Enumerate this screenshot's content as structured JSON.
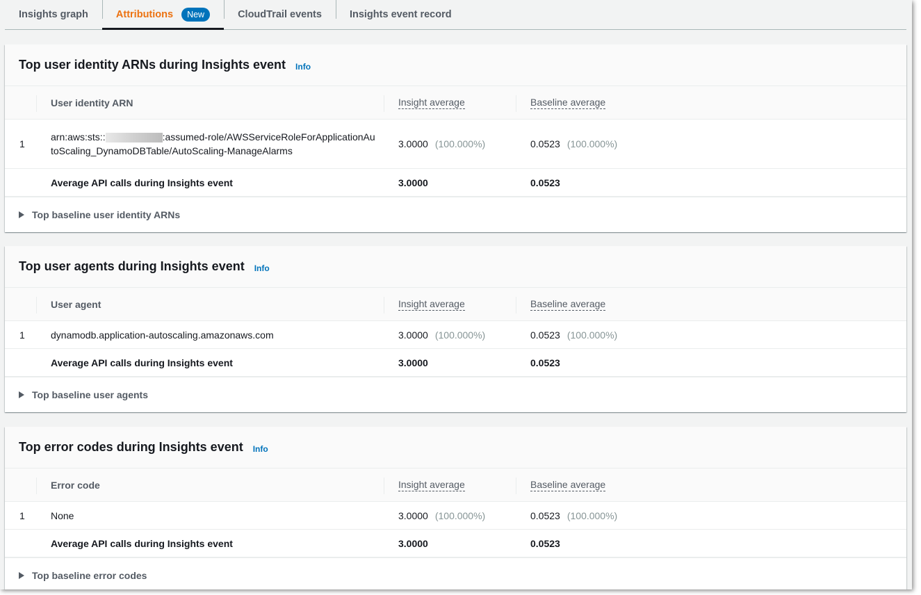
{
  "tabs": [
    {
      "label": "Insights graph",
      "active": false
    },
    {
      "label": "Attributions",
      "active": true,
      "badge": "New"
    },
    {
      "label": "CloudTrail events",
      "active": false
    },
    {
      "label": "Insights event record",
      "active": false
    }
  ],
  "accent_color": "#ec7211",
  "info_label": "Info",
  "sections": [
    {
      "title": "Top user identity ARNs during Insights event",
      "columns": [
        "User identity ARN",
        "Insight average",
        "Baseline average"
      ],
      "rows": [
        {
          "rank": "1",
          "name_prefix": "arn:aws:sts::",
          "name_suffix": ":assumed-role/AWSServiceRoleForApplicationAutoScaling_DynamoDBTable/AutoScaling-ManageAlarms",
          "redacted": true,
          "insight": "3.0000",
          "insight_pct": "(100.000%)",
          "baseline": "0.0523",
          "baseline_pct": "(100.000%)"
        }
      ],
      "avg_label": "Average API calls during Insights event",
      "avg_insight": "3.0000",
      "avg_baseline": "0.0523",
      "expand_label": "Top baseline user identity ARNs"
    },
    {
      "title": "Top user agents during Insights event",
      "columns": [
        "User agent",
        "Insight average",
        "Baseline average"
      ],
      "rows": [
        {
          "rank": "1",
          "name_prefix": "dynamodb.application-autoscaling.amazonaws.com",
          "name_suffix": "",
          "redacted": false,
          "insight": "3.0000",
          "insight_pct": "(100.000%)",
          "baseline": "0.0523",
          "baseline_pct": "(100.000%)"
        }
      ],
      "avg_label": "Average API calls during Insights event",
      "avg_insight": "3.0000",
      "avg_baseline": "0.0523",
      "expand_label": "Top baseline user agents"
    },
    {
      "title": "Top error codes during Insights event",
      "columns": [
        "Error code",
        "Insight average",
        "Baseline average"
      ],
      "rows": [
        {
          "rank": "1",
          "name_prefix": "None",
          "name_suffix": "",
          "redacted": false,
          "insight": "3.0000",
          "insight_pct": "(100.000%)",
          "baseline": "0.0523",
          "baseline_pct": "(100.000%)"
        }
      ],
      "avg_label": "Average API calls during Insights event",
      "avg_insight": "3.0000",
      "avg_baseline": "0.0523",
      "expand_label": "Top baseline error codes"
    }
  ]
}
